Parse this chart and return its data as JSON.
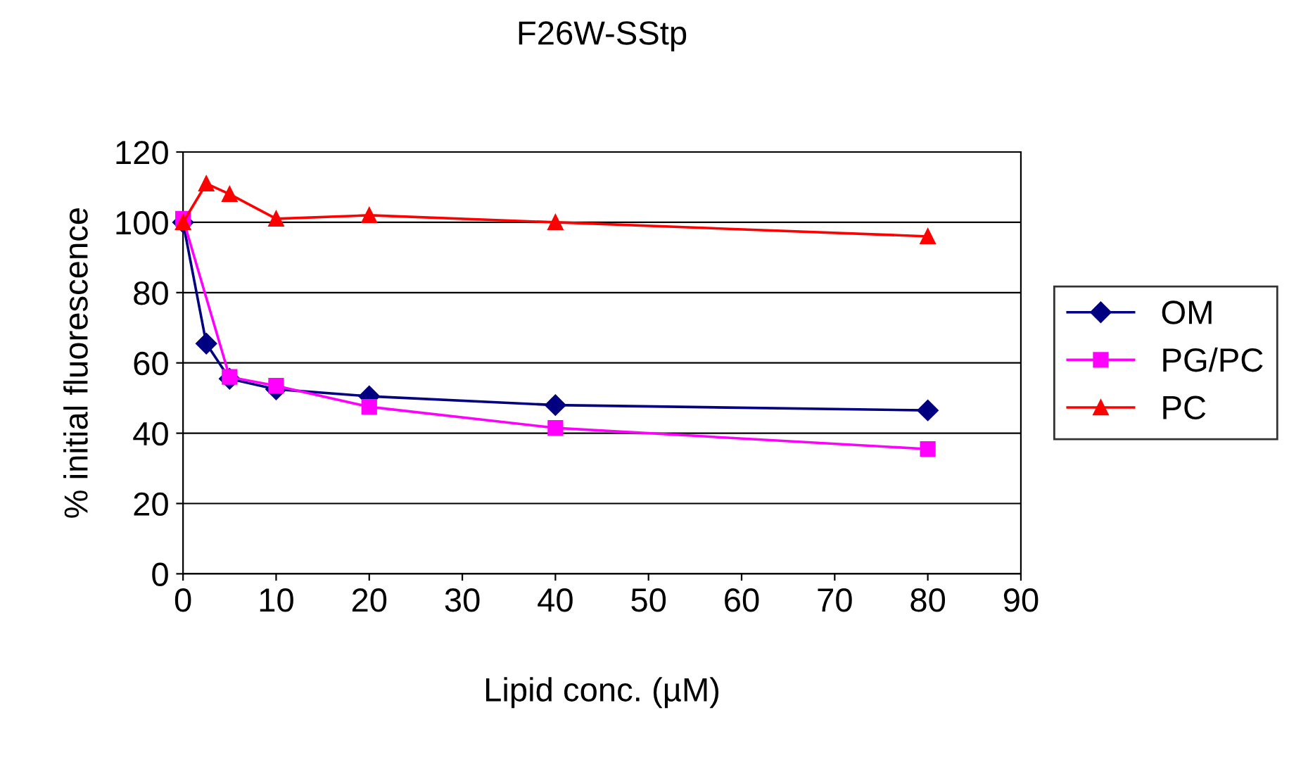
{
  "chart_data": {
    "type": "line",
    "title": "F26W-SStp",
    "xlabel": "Lipid conc. (µM)",
    "ylabel": "% initial fluorescence",
    "series": [
      {
        "name": "OM",
        "color": "#000080",
        "marker": "diamond",
        "x": [
          0,
          2.5,
          5,
          10,
          20,
          40,
          80
        ],
        "values": [
          100,
          65.5,
          55.5,
          52.5,
          50.5,
          48,
          46.5
        ]
      },
      {
        "name": "PG/PC",
        "color": "#ff00ff",
        "marker": "square",
        "x": [
          0,
          5,
          10,
          20,
          40,
          80
        ],
        "values": [
          101,
          56,
          53.5,
          47.5,
          41.5,
          35.5
        ]
      },
      {
        "name": "PC",
        "color": "#ff0000",
        "marker": "triangle",
        "x": [
          0,
          2.5,
          5,
          10,
          20,
          40,
          80
        ],
        "values": [
          100,
          111,
          108,
          101,
          102,
          100,
          96
        ]
      }
    ],
    "xlim": [
      0,
      90
    ],
    "xticks": [
      0,
      10,
      20,
      30,
      40,
      50,
      60,
      70,
      80,
      90
    ],
    "ylim": [
      0,
      120
    ],
    "yticks": [
      0,
      20,
      40,
      60,
      80,
      100,
      120
    ],
    "grid": "y",
    "legend": "right",
    "line_style": "solid"
  }
}
